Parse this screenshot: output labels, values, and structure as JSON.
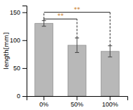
{
  "chart_data": {
    "type": "bar",
    "categories": [
      "0%",
      "50%",
      "100%"
    ],
    "values": [
      130,
      91,
      80
    ],
    "errors": [
      5,
      13,
      10
    ],
    "color": "#b8b8b8",
    "ylabel": "length[mm]",
    "ylim": [
      0,
      162
    ],
    "yticks": [
      0,
      50,
      100,
      150
    ],
    "grid": false,
    "annotations": [
      {
        "text": "**",
        "from": "0%",
        "to": "50%",
        "y": 138,
        "color": "#c87820"
      },
      {
        "text": "**",
        "from": "0%",
        "to": "100%",
        "y": 150,
        "color": "#c87820"
      }
    ]
  }
}
